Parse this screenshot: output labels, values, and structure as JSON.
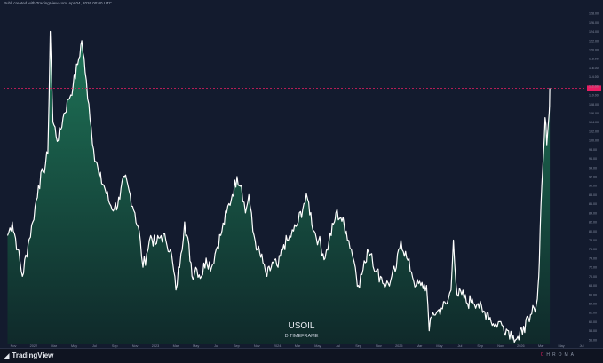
{
  "header": {
    "credit": "Publi created with TradingView.com, Apr 04, 2026 00:00 UTC"
  },
  "title": {
    "symbol": "USOIL",
    "timeframe": "D TIMEFRAME"
  },
  "footer": {
    "brand": "TradingView",
    "icons": [
      "C",
      "H",
      "R",
      "O",
      "M",
      "A"
    ]
  },
  "colors": {
    "background": "#131b2e",
    "line": "#ffffff",
    "fill_top": "#1f7a5a",
    "fill_bottom": "#0f2a2a",
    "price_line": "#e91e63",
    "axis_text": "#8b93a7"
  },
  "chart_data": {
    "type": "area",
    "symbol": "USOIL",
    "timeframe": "D",
    "x_tick_labels": [
      "Nov",
      "2022",
      "Mar",
      "May",
      "Jul",
      "Sep",
      "Nov",
      "2023",
      "Mar",
      "May",
      "Jul",
      "Sep",
      "Nov",
      "2024",
      "Mar",
      "May",
      "Jul",
      "Sep",
      "Nov",
      "2025",
      "Mar",
      "May",
      "Jul",
      "Sep",
      "Nov",
      "2026",
      "Mar",
      "May",
      "Jul"
    ],
    "y_tick_labels": [
      "56.00",
      "58.00",
      "60.00",
      "62.00",
      "64.00",
      "66.00",
      "68.00",
      "70.00",
      "72.00",
      "74.00",
      "76.00",
      "78.00",
      "80.00",
      "82.00",
      "84.00",
      "86.00",
      "88.00",
      "90.00",
      "92.00",
      "94.00",
      "96.00",
      "98.00",
      "100.00",
      "102.00",
      "104.00",
      "106.00",
      "108.00",
      "110.00",
      "112.00",
      "114.00",
      "116.00",
      "118.00",
      "120.00",
      "122.00",
      "124.00",
      "126.00",
      "128.00"
    ],
    "ylim": [
      55,
      129
    ],
    "current_price": 111.5,
    "x": [
      "2021-11-01",
      "2021-11-15",
      "2021-12-01",
      "2021-12-15",
      "2022-01-01",
      "2022-01-15",
      "2022-02-01",
      "2022-02-15",
      "2022-03-01",
      "2022-03-08",
      "2022-03-16",
      "2022-04-01",
      "2022-04-15",
      "2022-05-01",
      "2022-05-15",
      "2022-06-01",
      "2022-06-10",
      "2022-06-20",
      "2022-07-01",
      "2022-07-15",
      "2022-08-01",
      "2022-08-15",
      "2022-09-01",
      "2022-09-15",
      "2022-10-01",
      "2022-10-15",
      "2022-11-01",
      "2022-11-15",
      "2022-12-01",
      "2022-12-09",
      "2022-12-20",
      "2023-01-01",
      "2023-01-15",
      "2023-02-01",
      "2023-02-15",
      "2023-03-01",
      "2023-03-17",
      "2023-04-01",
      "2023-04-12",
      "2023-05-01",
      "2023-05-04",
      "2023-05-15",
      "2023-06-01",
      "2023-06-15",
      "2023-07-01",
      "2023-07-15",
      "2023-08-01",
      "2023-08-15",
      "2023-09-01",
      "2023-09-15",
      "2023-09-28",
      "2023-10-10",
      "2023-10-20",
      "2023-11-01",
      "2023-11-15",
      "2023-12-01",
      "2023-12-13",
      "2024-01-01",
      "2024-01-15",
      "2024-02-01",
      "2024-02-15",
      "2024-03-01",
      "2024-03-15",
      "2024-04-01",
      "2024-04-12",
      "2024-05-01",
      "2024-05-15",
      "2024-06-03",
      "2024-06-15",
      "2024-07-01",
      "2024-07-05",
      "2024-07-20",
      "2024-08-05",
      "2024-08-20",
      "2024-09-01",
      "2024-09-10",
      "2024-10-01",
      "2024-10-07",
      "2024-10-20",
      "2024-11-01",
      "2024-11-15",
      "2024-12-01",
      "2024-12-15",
      "2025-01-01",
      "2025-01-15",
      "2025-02-01",
      "2025-02-15",
      "2025-03-01",
      "2025-03-15",
      "2025-04-01",
      "2025-04-09",
      "2025-04-20",
      "2025-05-01",
      "2025-05-15",
      "2025-06-01",
      "2025-06-13",
      "2025-06-20",
      "2025-07-01",
      "2025-07-15",
      "2025-08-01",
      "2025-08-15",
      "2025-09-01",
      "2025-09-15",
      "2025-10-01",
      "2025-10-20",
      "2025-11-01",
      "2025-11-15",
      "2025-12-01",
      "2025-12-15",
      "2026-01-01",
      "2026-01-15",
      "2026-02-01",
      "2026-02-15",
      "2026-02-25",
      "2026-03-01",
      "2026-03-05",
      "2026-03-10",
      "2026-03-15",
      "2026-03-20",
      "2026-03-25",
      "2026-04-01",
      "2026-04-03"
    ],
    "y": [
      79,
      82,
      76,
      70,
      77,
      82,
      90,
      93,
      97,
      124,
      104,
      100,
      105,
      109,
      112,
      118,
      122,
      115,
      108,
      98,
      92,
      90,
      86,
      85,
      87,
      92,
      88,
      84,
      78,
      72,
      75,
      79,
      77,
      79,
      78,
      76,
      67,
      75,
      82,
      73,
      70,
      72,
      70,
      74,
      72,
      76,
      80,
      84,
      88,
      92,
      90,
      84,
      88,
      80,
      76,
      73,
      70,
      73,
      72,
      77,
      78,
      80,
      82,
      86,
      87,
      80,
      78,
      74,
      78,
      82,
      84,
      83,
      80,
      76,
      72,
      68,
      73,
      76,
      75,
      71,
      70,
      68,
      69,
      72,
      78,
      74,
      71,
      68,
      68,
      68,
      58,
      62,
      62,
      63,
      64,
      67,
      78,
      66,
      66,
      64,
      65,
      64,
      62,
      62,
      59,
      60,
      59,
      58,
      57,
      56,
      59,
      60,
      63,
      65,
      70,
      80,
      90,
      97,
      105,
      99,
      106,
      111.5
    ],
    "legend": []
  }
}
